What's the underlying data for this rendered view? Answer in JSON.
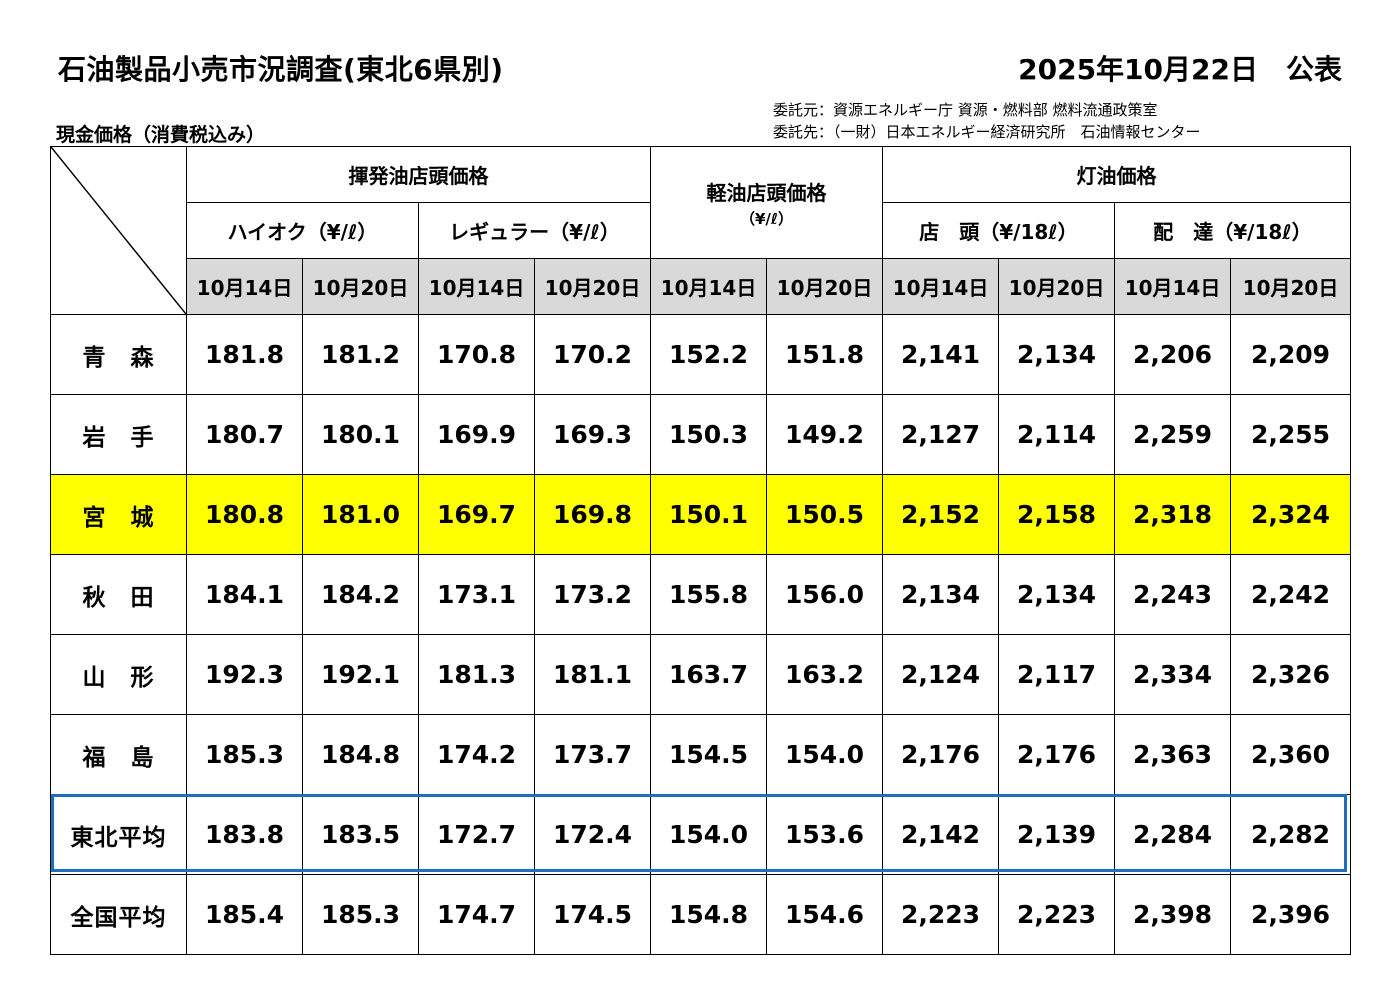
{
  "header": {
    "title": "石油製品小売市況調査(東北6県別)",
    "date": "2025年10月22日　公表",
    "subtitle": "現金価格（消費税込み）",
    "commissioner": "委託元：資源エネルギー庁 資源・燃料部 燃料流通政策室",
    "contractor": "委託先：（一財）日本エネルギー経済研究所　石油情報センター"
  },
  "columns": {
    "gasoline": "揮発油店頭価格",
    "highoctane": "ハイオク（¥/ℓ）",
    "regular": "レギュラー（¥/ℓ）",
    "diesel": "軽油店頭価格",
    "diesel_unit": "（¥/ℓ）",
    "kerosene": "灯油価格",
    "kerosene_store": "店　頭（¥/18ℓ）",
    "kerosene_delivery": "配　達（¥/18ℓ）",
    "date1": "10月14日",
    "date2": "10月20日"
  },
  "rows": [
    {
      "pref": "青　森",
      "values": [
        "181.8",
        "181.2",
        "170.8",
        "170.2",
        "152.2",
        "151.8",
        "2,141",
        "2,134",
        "2,206",
        "2,209"
      ]
    },
    {
      "pref": "岩　手",
      "values": [
        "180.7",
        "180.1",
        "169.9",
        "169.3",
        "150.3",
        "149.2",
        "2,127",
        "2,114",
        "2,259",
        "2,255"
      ]
    },
    {
      "pref": "宮　城",
      "values": [
        "180.8",
        "181.0",
        "169.7",
        "169.8",
        "150.1",
        "150.5",
        "2,152",
        "2,158",
        "2,318",
        "2,324"
      ]
    },
    {
      "pref": "秋　田",
      "values": [
        "184.1",
        "184.2",
        "173.1",
        "173.2",
        "155.8",
        "156.0",
        "2,134",
        "2,134",
        "2,243",
        "2,242"
      ]
    },
    {
      "pref": "山　形",
      "values": [
        "192.3",
        "192.1",
        "181.3",
        "181.1",
        "163.7",
        "163.2",
        "2,124",
        "2,117",
        "2,334",
        "2,326"
      ]
    },
    {
      "pref": "福　島",
      "values": [
        "185.3",
        "184.8",
        "174.2",
        "173.7",
        "154.5",
        "154.0",
        "2,176",
        "2,176",
        "2,363",
        "2,360"
      ]
    },
    {
      "pref": "東北平均",
      "values": [
        "183.8",
        "183.5",
        "172.7",
        "172.4",
        "154.0",
        "153.6",
        "2,142",
        "2,139",
        "2,284",
        "2,282"
      ]
    },
    {
      "pref": "全国平均",
      "values": [
        "185.4",
        "185.3",
        "174.7",
        "174.5",
        "154.8",
        "154.6",
        "2,223",
        "2,223",
        "2,398",
        "2,396"
      ]
    }
  ],
  "colors": {
    "highlight_row": "#ffff00",
    "average_box": "#1f6fc0",
    "date_header": "#d9d9d9"
  }
}
